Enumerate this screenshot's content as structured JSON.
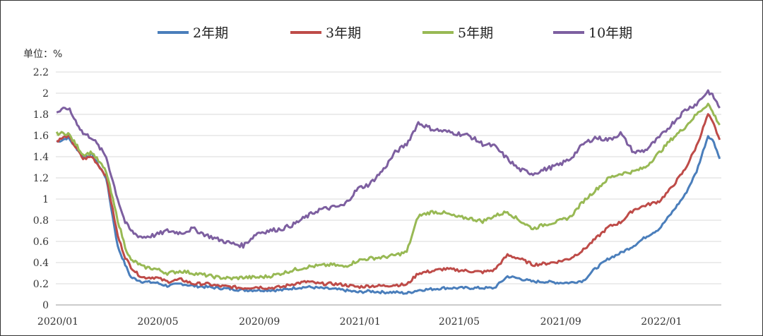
{
  "chart_data": {
    "type": "line",
    "title": "",
    "xlabel": "",
    "ylabel": "单位：%",
    "ylim": [
      0,
      2.2
    ],
    "yticks": [
      "0",
      "0.2",
      "0.4",
      "0.6",
      "0.8",
      "1",
      "1.2",
      "1.4",
      "1.6",
      "1.8",
      "2",
      "2.2"
    ],
    "xticks": [
      "2020/01",
      "2020/05",
      "2020/09",
      "2021/01",
      "2021/05",
      "2021/09",
      "2022/01"
    ],
    "grid": "horizontal",
    "legend_position": "top",
    "x": [
      "2020-01-02",
      "2020-01-16",
      "2020-02-03",
      "2020-02-14",
      "2020-03-02",
      "2020-03-16",
      "2020-03-25",
      "2020-04-01",
      "2020-04-08",
      "2020-04-15",
      "2020-05-01",
      "2020-05-15",
      "2020-06-01",
      "2020-06-15",
      "2020-07-01",
      "2020-07-15",
      "2020-08-01",
      "2020-08-15",
      "2020-09-01",
      "2020-09-15",
      "2020-10-01",
      "2020-10-15",
      "2020-11-01",
      "2020-11-15",
      "2020-12-01",
      "2020-12-15",
      "2021-01-01",
      "2021-01-15",
      "2021-02-01",
      "2021-02-15",
      "2021-03-01",
      "2021-03-15",
      "2021-04-01",
      "2021-04-15",
      "2021-05-01",
      "2021-05-15",
      "2021-06-01",
      "2021-06-15",
      "2021-07-01",
      "2021-07-15",
      "2021-08-01",
      "2021-08-15",
      "2021-09-01",
      "2021-09-15",
      "2021-10-01",
      "2021-10-15",
      "2021-11-01",
      "2021-11-15",
      "2021-12-01",
      "2021-12-15",
      "2022-01-01",
      "2022-01-15",
      "2022-02-01",
      "2022-02-15",
      "2022-03-01",
      "2022-03-08",
      "2022-03-15"
    ],
    "series": [
      {
        "name": "2年期",
        "color": "#4a7ebb",
        "values": [
          1.54,
          1.58,
          1.4,
          1.42,
          1.2,
          0.55,
          0.38,
          0.26,
          0.24,
          0.22,
          0.21,
          0.18,
          0.2,
          0.18,
          0.17,
          0.16,
          0.15,
          0.14,
          0.14,
          0.14,
          0.14,
          0.16,
          0.17,
          0.16,
          0.15,
          0.14,
          0.12,
          0.13,
          0.12,
          0.12,
          0.11,
          0.14,
          0.15,
          0.16,
          0.16,
          0.16,
          0.16,
          0.16,
          0.27,
          0.25,
          0.22,
          0.22,
          0.21,
          0.21,
          0.23,
          0.34,
          0.44,
          0.49,
          0.56,
          0.64,
          0.72,
          0.86,
          1.04,
          1.26,
          1.6,
          1.54,
          1.38
        ]
      },
      {
        "name": "3年期",
        "color": "#be4b48",
        "values": [
          1.55,
          1.6,
          1.38,
          1.4,
          1.22,
          0.65,
          0.45,
          0.36,
          0.3,
          0.26,
          0.26,
          0.22,
          0.24,
          0.2,
          0.2,
          0.18,
          0.17,
          0.16,
          0.17,
          0.16,
          0.17,
          0.2,
          0.22,
          0.2,
          0.2,
          0.19,
          0.17,
          0.18,
          0.18,
          0.19,
          0.19,
          0.3,
          0.32,
          0.34,
          0.33,
          0.32,
          0.31,
          0.33,
          0.47,
          0.44,
          0.38,
          0.39,
          0.41,
          0.44,
          0.52,
          0.62,
          0.74,
          0.78,
          0.9,
          0.94,
          0.98,
          1.1,
          1.28,
          1.5,
          1.8,
          1.7,
          1.56
        ]
      },
      {
        "name": "5年期",
        "color": "#98b954",
        "values": [
          1.62,
          1.62,
          1.42,
          1.44,
          1.26,
          0.8,
          0.55,
          0.42,
          0.4,
          0.36,
          0.34,
          0.3,
          0.32,
          0.3,
          0.28,
          0.26,
          0.25,
          0.26,
          0.26,
          0.27,
          0.3,
          0.33,
          0.36,
          0.37,
          0.38,
          0.36,
          0.42,
          0.44,
          0.45,
          0.47,
          0.5,
          0.84,
          0.88,
          0.87,
          0.83,
          0.82,
          0.79,
          0.84,
          0.88,
          0.8,
          0.72,
          0.76,
          0.79,
          0.83,
          0.98,
          1.08,
          1.2,
          1.24,
          1.26,
          1.3,
          1.44,
          1.56,
          1.68,
          1.8,
          1.9,
          1.8,
          1.7
        ]
      },
      {
        "name": "10年期",
        "color": "#7d5fa0",
        "values": [
          1.82,
          1.86,
          1.62,
          1.58,
          1.4,
          1.0,
          0.78,
          0.7,
          0.66,
          0.64,
          0.66,
          0.7,
          0.68,
          0.72,
          0.66,
          0.62,
          0.58,
          0.56,
          0.68,
          0.7,
          0.72,
          0.76,
          0.84,
          0.9,
          0.92,
          0.94,
          1.1,
          1.14,
          1.28,
          1.44,
          1.52,
          1.72,
          1.66,
          1.64,
          1.62,
          1.6,
          1.52,
          1.5,
          1.38,
          1.28,
          1.24,
          1.28,
          1.32,
          1.38,
          1.52,
          1.58,
          1.56,
          1.62,
          1.44,
          1.46,
          1.58,
          1.7,
          1.84,
          1.9,
          2.02,
          1.96,
          1.86
        ]
      }
    ]
  }
}
